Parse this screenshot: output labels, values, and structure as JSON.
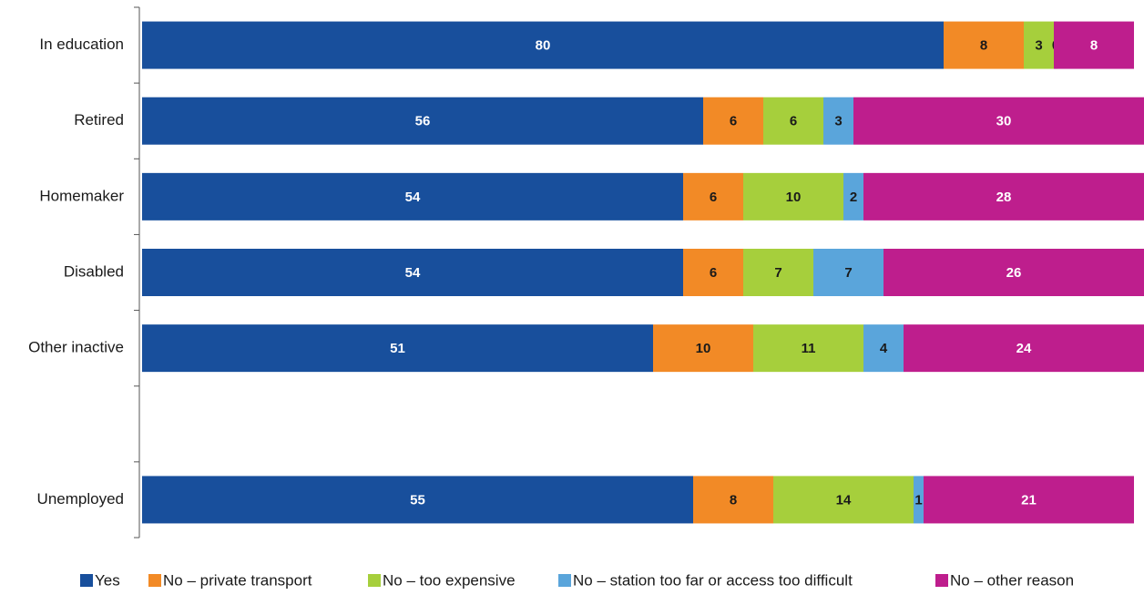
{
  "chart_data": {
    "type": "bar",
    "orientation": "horizontal",
    "stacked": true,
    "categories": [
      "In education",
      "Retired",
      "Homemaker",
      "Disabled",
      "Other inactive",
      "",
      "Unemployed"
    ],
    "series": [
      {
        "name": "Yes",
        "color": "#184f9c",
        "label_color": "#ffffff",
        "values": [
          80,
          56,
          54,
          54,
          51,
          null,
          55
        ]
      },
      {
        "name": "No – private transport",
        "color": "#f28a26",
        "label_color": "#1a1a1a",
        "values": [
          8,
          6,
          6,
          6,
          10,
          null,
          8
        ]
      },
      {
        "name": "No – too expensive",
        "color": "#a6cf3c",
        "label_color": "#1a1a1a",
        "values": [
          3,
          6,
          10,
          7,
          11,
          null,
          14
        ]
      },
      {
        "name": "No – station too far or access too difficult",
        "color": "#5aa5db",
        "label_color": "#1a1a1a",
        "values": [
          0,
          3,
          2,
          7,
          4,
          null,
          1
        ]
      },
      {
        "name": "No – other reason",
        "color": "#be1e8d",
        "label_color": "#ffffff",
        "values": [
          8,
          30,
          28,
          26,
          24,
          null,
          21
        ]
      }
    ],
    "xlim": [
      0,
      100
    ],
    "grid": false,
    "legend_position": "bottom"
  }
}
